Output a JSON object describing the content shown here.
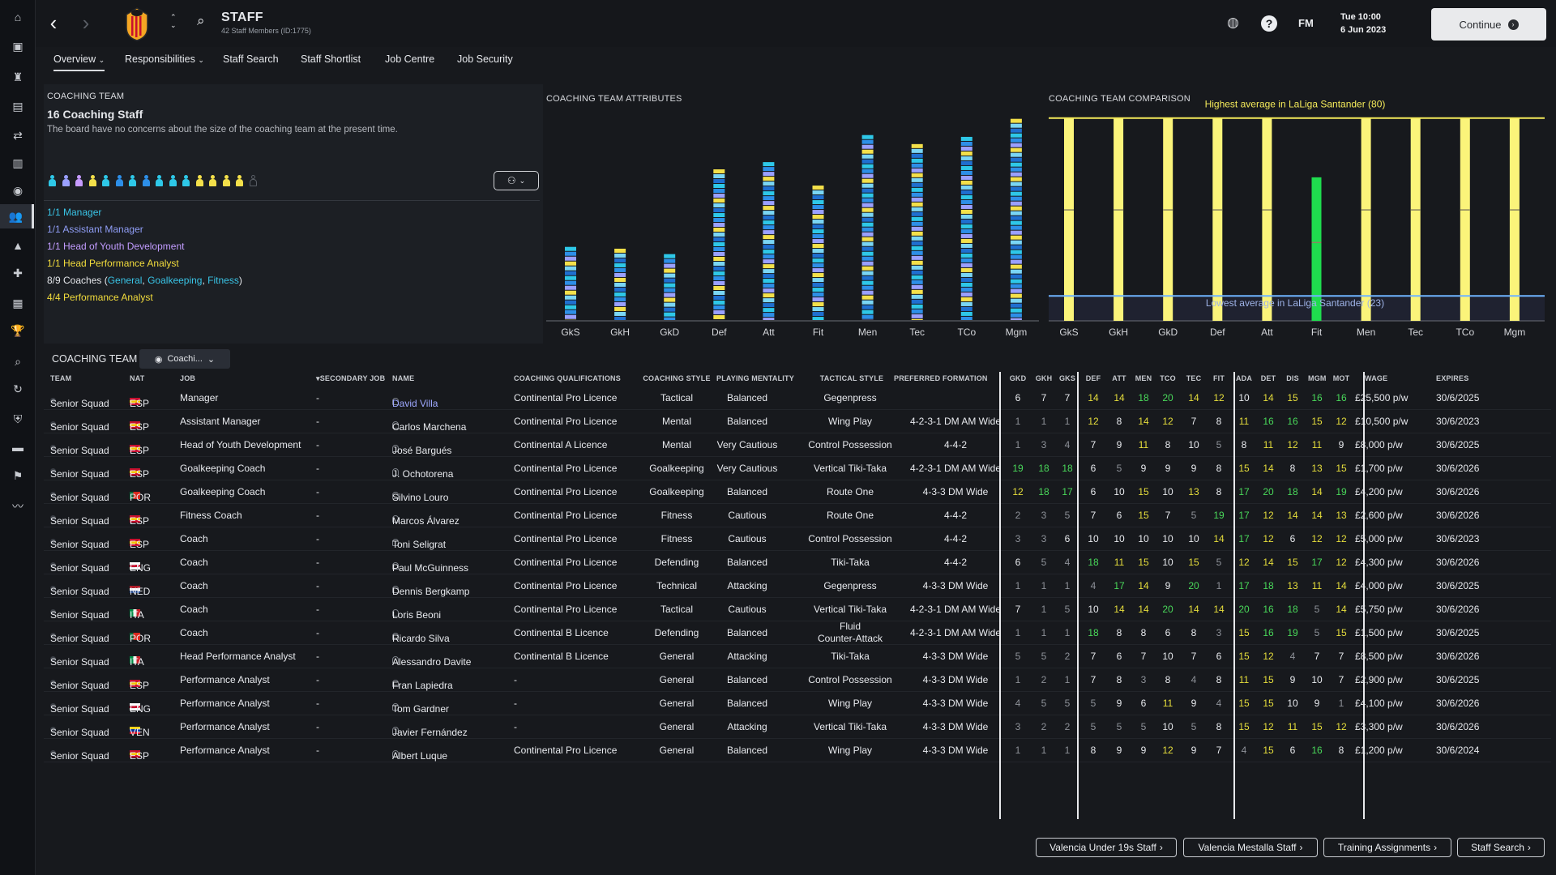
{
  "header": {
    "title": "STAFF",
    "subtitle": "42 Staff Members (ID:1775)",
    "date_line1": "Tue 10:00",
    "date_line2": "6 Jun 2023",
    "fm_label": "FM",
    "continue_label": "Continue"
  },
  "tabs": [
    "Overview",
    "Responsibilities",
    "Staff Search",
    "Staff Shortlist",
    "Job Centre",
    "Job Security"
  ],
  "coaching_team": {
    "heading": "COACHING TEAM",
    "count": "16 Coaching Staff",
    "note": "The board have no concerns about the size of the coaching team at the present time.",
    "staff_colors": [
      "#2ec8e8",
      "#9aa0ff",
      "#c79bff",
      "#f4e04a",
      "#2ec8e8",
      "#2d8fe8",
      "#2ec8e8",
      "#2d8fe8",
      "#2ec8e8",
      "#2ec8e8",
      "#2ec8e8",
      "#f4e04a",
      "#f4e04a",
      "#f4e04a",
      "#f4e04a",
      "#5a5e66"
    ],
    "roles": [
      {
        "text": "1/1 Manager",
        "color": "#39c4e6"
      },
      {
        "text": "1/1 Assistant Manager",
        "color": "#8f9df5"
      },
      {
        "text": "1/1 Head of Youth Development",
        "color": "#c29cff"
      },
      {
        "text": "1/1 Head Performance Analyst",
        "color": "#f2dc3c"
      },
      {
        "text": "4/4 Performance Analyst",
        "color": "#f2dc3c"
      }
    ],
    "coaches_prefix": "8/9 Coaches (",
    "coaches_general": "General",
    "coaches_sep1": ", ",
    "coaches_gk": "Goalkeeping",
    "coaches_sep2": ", ",
    "coaches_fit": "Fitness",
    "coaches_suffix": ")"
  },
  "chart_data": [
    {
      "type": "bar",
      "title": "COACHING TEAM ATTRIBUTES",
      "categories": [
        "GkS",
        "GkH",
        "GkD",
        "Def",
        "Att",
        "Fit",
        "Men",
        "Tec",
        "TCo",
        "Mgm"
      ],
      "values": [
        41,
        40,
        37,
        84,
        88,
        75,
        103,
        98,
        102,
        112
      ],
      "ylim": [
        0,
        115
      ]
    },
    {
      "type": "bar",
      "title": "COACHING TEAM COMPARISON",
      "categories": [
        "GkS",
        "GkH",
        "GkD",
        "Def",
        "Att",
        "Fit",
        "Men",
        "Tec",
        "TCo",
        "Mgm"
      ],
      "values": [
        80,
        80,
        80,
        80,
        80,
        61,
        80,
        80,
        80,
        80
      ],
      "series_colors": [
        "#fbf47a",
        "#fbf47a",
        "#fbf47a",
        "#fbf47a",
        "#fbf47a",
        "#1fdc4e",
        "#fbf47a",
        "#fbf47a",
        "#fbf47a",
        "#fbf47a"
      ],
      "highest_label": "Highest average in LaLiga Santander (80)",
      "lowest_label": "Lowest average in LaLiga Santander (23)",
      "highest": 80,
      "lowest": 23,
      "ylim": [
        15,
        82
      ]
    }
  ],
  "list": {
    "heading": "COACHING TEAM",
    "view_label": "Coachi..."
  },
  "columns": [
    "TEAM",
    "NAT",
    "JOB",
    "SECONDARY JOB",
    "NAME",
    "COACHING QUALIFICATIONS",
    "COACHING STYLE",
    "PLAYING MENTALITY",
    "TACTICAL STYLE",
    "PREFERRED FORMATION",
    "GKD",
    "GKH",
    "GKS",
    "DEF",
    "ATT",
    "MEN",
    "TCO",
    "TEC",
    "FIT",
    "ADA",
    "DET",
    "DIS",
    "MGM",
    "MOT",
    "WAGE",
    "EXPIRES"
  ],
  "rows": [
    {
      "team": "Senior Squad",
      "nat": "ESP",
      "job": "Manager",
      "sec": "-",
      "name": "David Villa",
      "qual": "Continental Pro Licence",
      "style": "Tactical",
      "ment": "Balanced",
      "tac": "Gegenpress",
      "form": "",
      "a": [
        6,
        7,
        7,
        14,
        14,
        18,
        20,
        14,
        12,
        10,
        14,
        15,
        16,
        16
      ],
      "wage": "£25,500 p/w",
      "exp": "30/6/2025",
      "link": true
    },
    {
      "team": "Senior Squad",
      "nat": "ESP",
      "job": "Assistant Manager",
      "sec": "-",
      "name": "Carlos Marchena",
      "qual": "Continental Pro Licence",
      "style": "Mental",
      "ment": "Balanced",
      "tac": "Wing Play",
      "form": "4-2-3-1 DM AM Wide",
      "a": [
        1,
        1,
        1,
        12,
        8,
        14,
        12,
        7,
        8,
        11,
        16,
        16,
        15,
        12
      ],
      "wage": "£10,500 p/w",
      "exp": "30/6/2023"
    },
    {
      "team": "Senior Squad",
      "nat": "ESP",
      "job": "Head of Youth Development",
      "sec": "-",
      "name": "José Bargués",
      "qual": "Continental A Licence",
      "style": "Mental",
      "ment": "Very Cautious",
      "tac": "Control Possession",
      "form": "4-4-2",
      "a": [
        1,
        3,
        4,
        7,
        9,
        11,
        8,
        10,
        5,
        8,
        11,
        12,
        11,
        9
      ],
      "wage": "£8,000 p/w",
      "exp": "30/6/2025"
    },
    {
      "team": "Senior Squad",
      "nat": "ESP",
      "job": "Goalkeeping Coach",
      "sec": "-",
      "name": "J. Ochotorena",
      "qual": "Continental Pro Licence",
      "style": "Goalkeeping",
      "ment": "Very Cautious",
      "tac": "Vertical Tiki-Taka",
      "form": "4-2-3-1 DM AM Wide",
      "a": [
        19,
        18,
        18,
        6,
        5,
        9,
        9,
        9,
        8,
        15,
        14,
        8,
        13,
        15
      ],
      "wage": "£1,700 p/w",
      "exp": "30/6/2026"
    },
    {
      "team": "Senior Squad",
      "nat": "POR",
      "job": "Goalkeeping Coach",
      "sec": "-",
      "name": "Silvino Louro",
      "qual": "Continental Pro Licence",
      "style": "Goalkeeping",
      "ment": "Balanced",
      "tac": "Route One",
      "form": "4-3-3 DM Wide",
      "a": [
        12,
        18,
        17,
        6,
        10,
        15,
        10,
        13,
        8,
        17,
        20,
        18,
        14,
        19
      ],
      "wage": "£4,200 p/w",
      "exp": "30/6/2026"
    },
    {
      "team": "Senior Squad",
      "nat": "ESP",
      "job": "Fitness Coach",
      "sec": "-",
      "name": "Marcos Álvarez",
      "qual": "Continental Pro Licence",
      "style": "Fitness",
      "ment": "Cautious",
      "tac": "Route One",
      "form": "4-4-2",
      "a": [
        2,
        3,
        5,
        7,
        6,
        15,
        7,
        5,
        19,
        17,
        12,
        14,
        14,
        13
      ],
      "wage": "£2,600 p/w",
      "exp": "30/6/2026"
    },
    {
      "team": "Senior Squad",
      "nat": "ESP",
      "job": "Coach",
      "sec": "-",
      "name": "Toni Seligrat",
      "qual": "Continental Pro Licence",
      "style": "Fitness",
      "ment": "Cautious",
      "tac": "Control Possession",
      "form": "4-4-2",
      "a": [
        3,
        3,
        6,
        10,
        10,
        10,
        10,
        10,
        14,
        17,
        12,
        6,
        12,
        12
      ],
      "wage": "£5,000 p/w",
      "exp": "30/6/2023"
    },
    {
      "team": "Senior Squad",
      "nat": "ENG",
      "job": "Coach",
      "sec": "-",
      "name": "Paul McGuinness",
      "qual": "Continental Pro Licence",
      "style": "Defending",
      "ment": "Balanced",
      "tac": "Tiki-Taka",
      "form": "4-4-2",
      "a": [
        6,
        5,
        4,
        18,
        11,
        15,
        10,
        15,
        5,
        12,
        14,
        15,
        17,
        12
      ],
      "wage": "£4,300 p/w",
      "exp": "30/6/2026"
    },
    {
      "team": "Senior Squad",
      "nat": "NED",
      "job": "Coach",
      "sec": "-",
      "name": "Dennis Bergkamp",
      "qual": "Continental Pro Licence",
      "style": "Technical",
      "ment": "Attacking",
      "tac": "Gegenpress",
      "form": "4-3-3 DM Wide",
      "a": [
        1,
        1,
        1,
        4,
        17,
        14,
        9,
        20,
        1,
        17,
        18,
        13,
        11,
        14
      ],
      "wage": "£4,000 p/w",
      "exp": "30/6/2025"
    },
    {
      "team": "Senior Squad",
      "nat": "ITA",
      "job": "Coach",
      "sec": "-",
      "name": "Loris Beoni",
      "qual": "Continental Pro Licence",
      "style": "Tactical",
      "ment": "Cautious",
      "tac": "Vertical Tiki-Taka",
      "form": "4-2-3-1 DM AM Wide",
      "a": [
        7,
        1,
        5,
        10,
        14,
        14,
        20,
        14,
        14,
        20,
        16,
        18,
        5,
        14
      ],
      "wage": "£5,750 p/w",
      "exp": "30/6/2026"
    },
    {
      "team": "Senior Squad",
      "nat": "POR",
      "job": "Coach",
      "sec": "-",
      "name": "Ricardo Silva",
      "qual": "Continental B Licence",
      "style": "Defending",
      "ment": "Balanced",
      "tac": "Fluid Counter-Attack",
      "tac1": "Fluid",
      "tac2": "Counter-Attack",
      "form": "4-2-3-1 DM AM Wide",
      "a": [
        1,
        1,
        1,
        18,
        8,
        8,
        6,
        8,
        3,
        15,
        16,
        19,
        5,
        15
      ],
      "wage": "£1,500 p/w",
      "exp": "30/6/2025"
    },
    {
      "team": "Senior Squad",
      "nat": "ITA",
      "job": "Head Performance Analyst",
      "sec": "-",
      "name": "Alessandro Davite",
      "qual": "Continental B Licence",
      "style": "General",
      "ment": "Attacking",
      "tac": "Tiki-Taka",
      "form": "4-3-3 DM Wide",
      "a": [
        5,
        5,
        2,
        7,
        6,
        7,
        10,
        7,
        6,
        15,
        12,
        4,
        7,
        7
      ],
      "wage": "£8,500 p/w",
      "exp": "30/6/2026"
    },
    {
      "team": "Senior Squad",
      "nat": "ESP",
      "job": "Performance Analyst",
      "sec": "-",
      "name": "Fran Lapiedra",
      "qual": "-",
      "style": "General",
      "ment": "Balanced",
      "tac": "Control Possession",
      "form": "4-3-3 DM Wide",
      "a": [
        1,
        2,
        1,
        7,
        8,
        3,
        8,
        4,
        8,
        11,
        15,
        9,
        10,
        7
      ],
      "wage": "£2,900 p/w",
      "exp": "30/6/2025"
    },
    {
      "team": "Senior Squad",
      "nat": "ENG",
      "job": "Performance Analyst",
      "sec": "-",
      "name": "Tom Gardner",
      "qual": "-",
      "style": "General",
      "ment": "Balanced",
      "tac": "Wing Play",
      "form": "4-3-3 DM Wide",
      "a": [
        4,
        5,
        5,
        5,
        9,
        6,
        11,
        9,
        4,
        15,
        15,
        10,
        9,
        1
      ],
      "wage": "£4,100 p/w",
      "exp": "30/6/2026"
    },
    {
      "team": "Senior Squad",
      "nat": "VEN",
      "job": "Performance Analyst",
      "sec": "-",
      "name": "Javier Fernández",
      "qual": "-",
      "style": "General",
      "ment": "Attacking",
      "tac": "Vertical Tiki-Taka",
      "form": "4-3-3 DM Wide",
      "a": [
        3,
        2,
        2,
        5,
        5,
        5,
        10,
        5,
        8,
        15,
        12,
        11,
        15,
        12
      ],
      "wage": "£3,300 p/w",
      "exp": "30/6/2026"
    },
    {
      "team": "Senior Squad",
      "nat": "ESP",
      "job": "Performance Analyst",
      "sec": "-",
      "name": "Albert Luque",
      "qual": "Continental Pro Licence",
      "style": "General",
      "ment": "Balanced",
      "tac": "Wing Play",
      "form": "4-3-3 DM Wide",
      "a": [
        1,
        1,
        1,
        8,
        9,
        9,
        12,
        9,
        7,
        4,
        15,
        6,
        16,
        8
      ],
      "wage": "£1,200 p/w",
      "exp": "30/6/2024"
    }
  ],
  "footer": [
    "Valencia Under 19s Staff",
    "Valencia Mestalla Staff",
    "Training Assignments",
    "Staff Search"
  ],
  "colors": {
    "high": "#49d85a",
    "good": "#e6de3c",
    "mid": "#e8eaee",
    "low": "#8d9198",
    "link": "#9ea8ff"
  }
}
